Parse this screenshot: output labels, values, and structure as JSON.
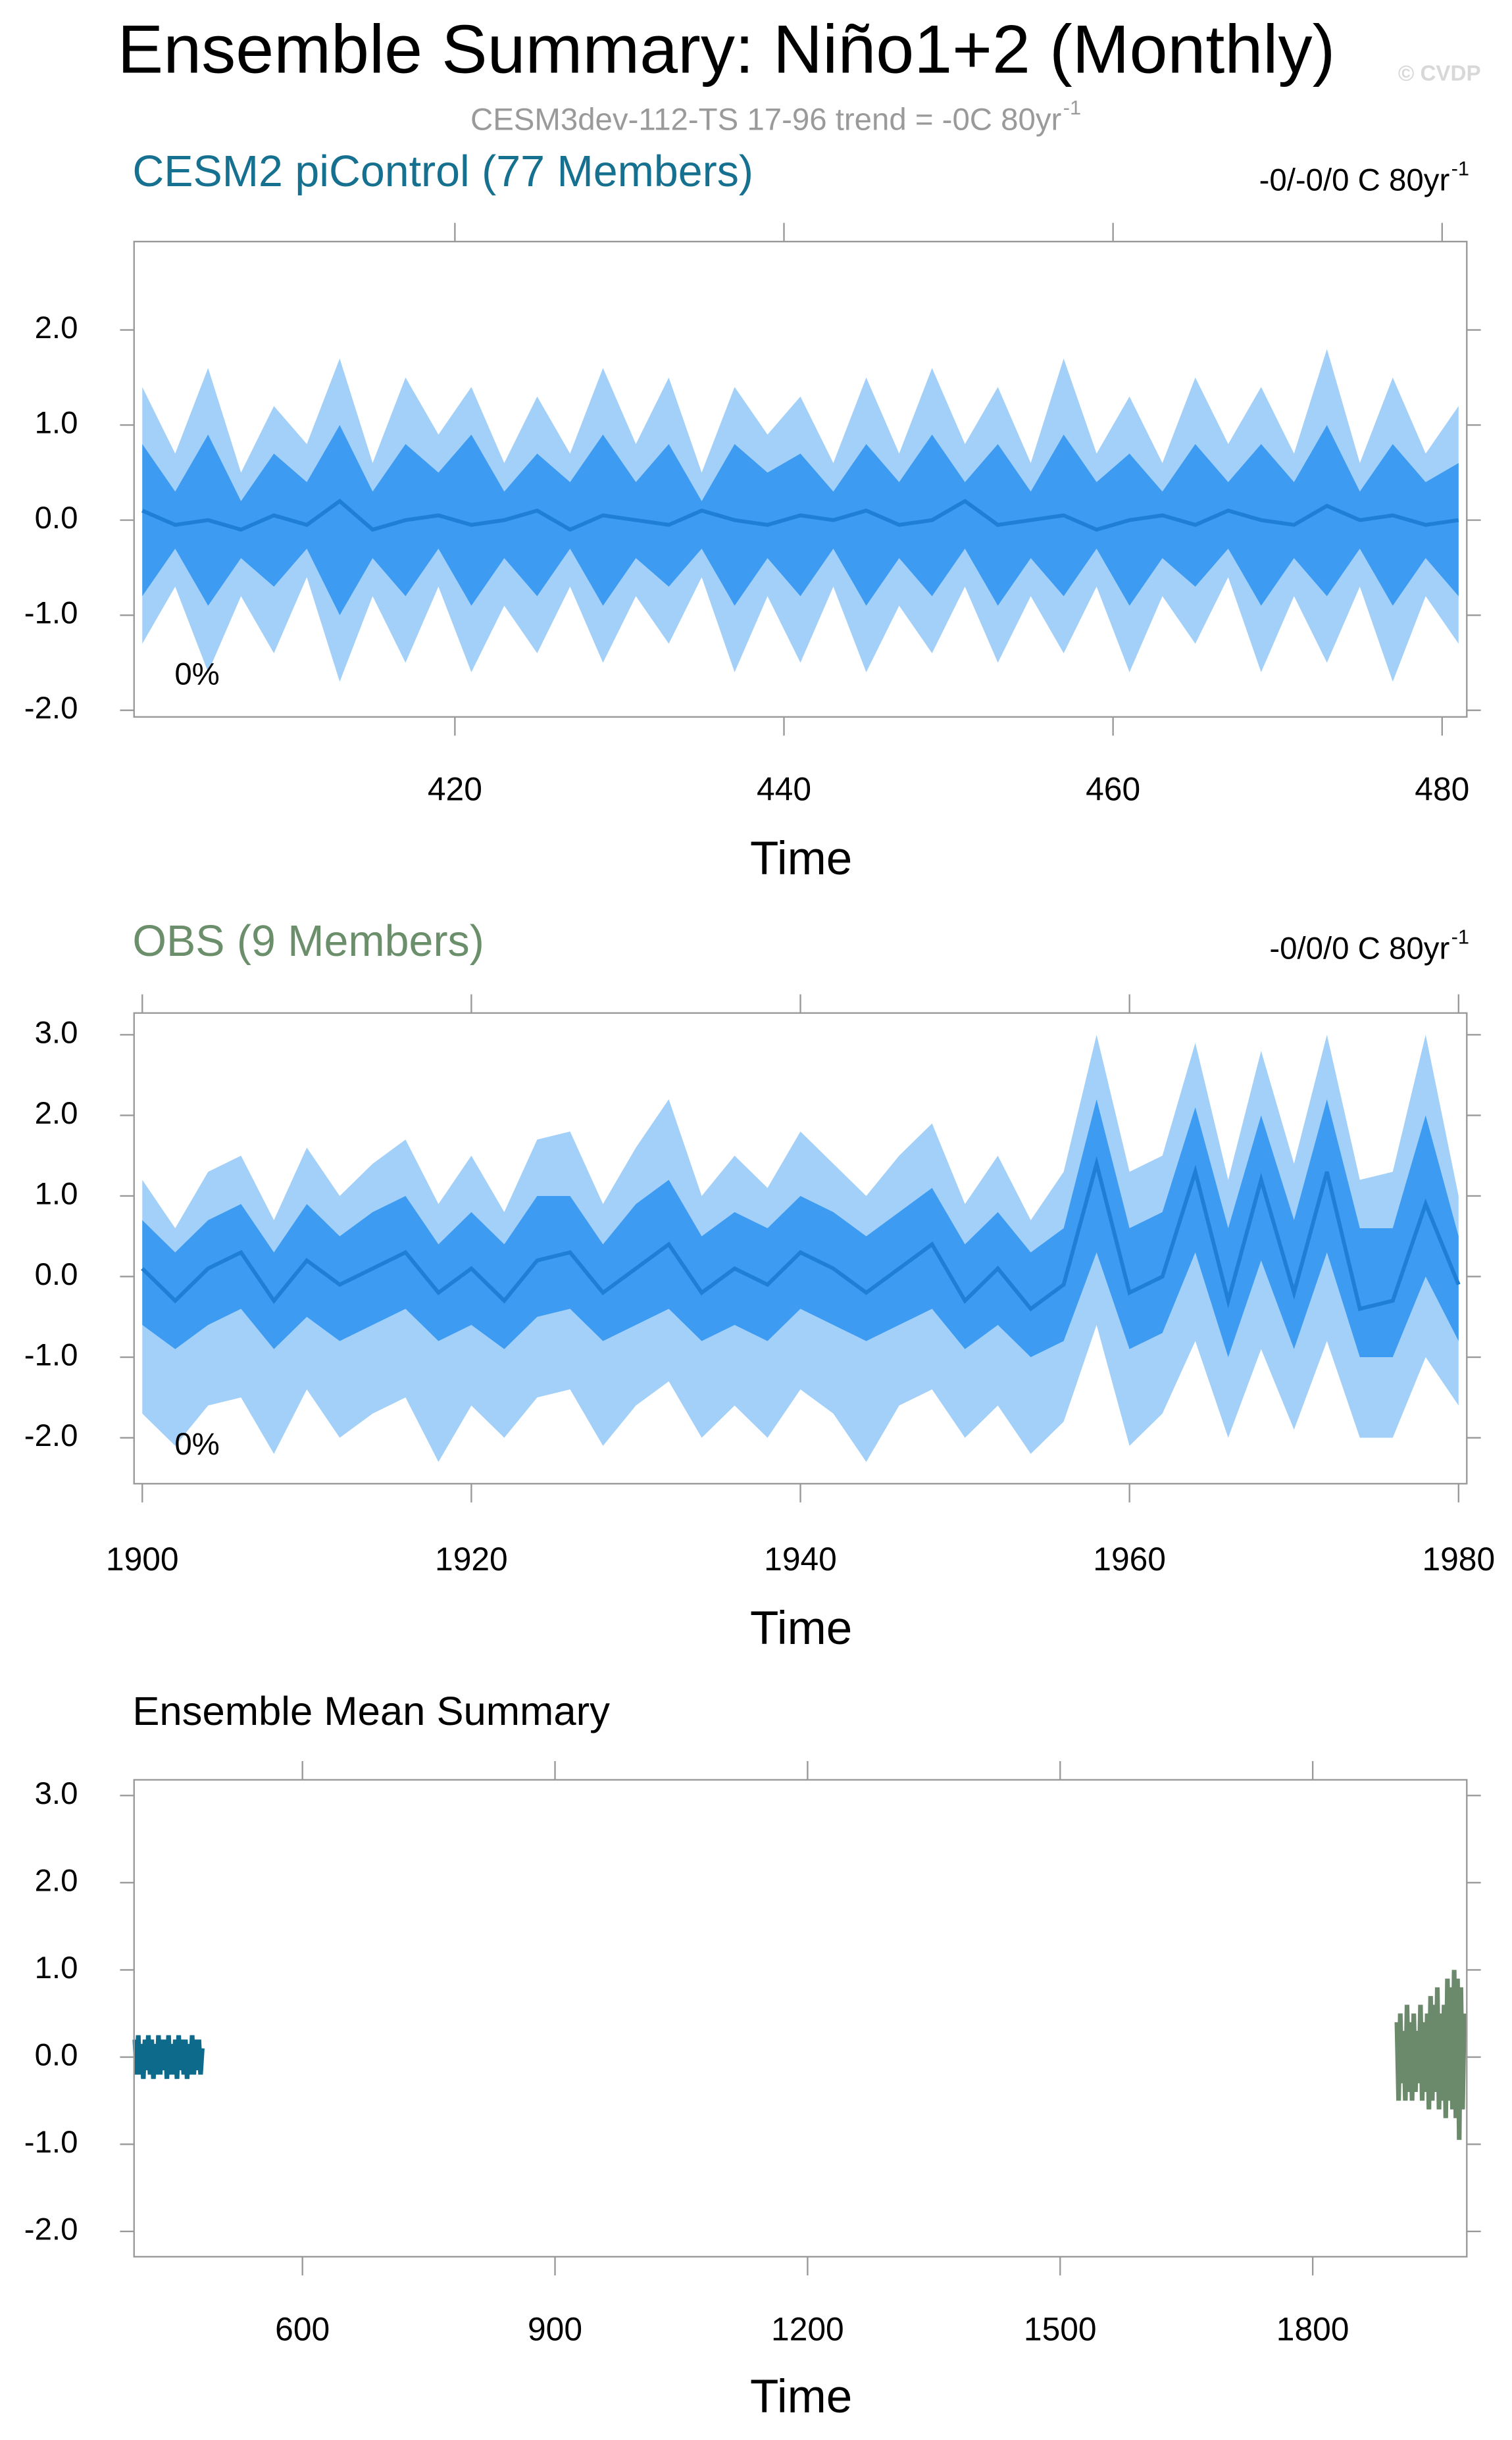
{
  "title": "Ensemble Summary: Niño1+2 (Monthly)",
  "watermark": "© CVDP",
  "subtitle": {
    "text": "CESM3dev-112-TS 17-96 trend = -0C 80yr",
    "superscript": "-1"
  },
  "chart_data": [
    {
      "type": "ensemble",
      "title": "CESM2 piControl (77 Members)",
      "title_color": "#16708f",
      "trend": {
        "text": "-0/-0/0 C 80yr",
        "superscript": "-1"
      },
      "annotation": "0%",
      "xlabel": "Time",
      "x": [
        401,
        403,
        405,
        407,
        409,
        411,
        413,
        415,
        417,
        419,
        421,
        423,
        425,
        427,
        429,
        431,
        433,
        435,
        437,
        439,
        441,
        443,
        445,
        447,
        449,
        451,
        453,
        455,
        457,
        459,
        461,
        463,
        465,
        467,
        469,
        471,
        473,
        475,
        477,
        479,
        481
      ],
      "bands": [
        {
          "color": "#a3d0f8",
          "high": [
            1.4,
            0.7,
            1.6,
            0.5,
            1.2,
            0.8,
            1.7,
            0.6,
            1.5,
            0.9,
            1.4,
            0.6,
            1.3,
            0.7,
            1.6,
            0.8,
            1.5,
            0.5,
            1.4,
            0.9,
            1.3,
            0.6,
            1.5,
            0.7,
            1.6,
            0.8,
            1.4,
            0.6,
            1.7,
            0.7,
            1.3,
            0.6,
            1.5,
            0.8,
            1.4,
            0.7,
            1.8,
            0.6,
            1.5,
            0.7,
            1.2
          ],
          "low": [
            -1.3,
            -0.7,
            -1.6,
            -0.8,
            -1.4,
            -0.6,
            -1.7,
            -0.8,
            -1.5,
            -0.7,
            -1.6,
            -0.9,
            -1.4,
            -0.7,
            -1.5,
            -0.8,
            -1.3,
            -0.6,
            -1.6,
            -0.8,
            -1.5,
            -0.7,
            -1.6,
            -0.9,
            -1.4,
            -0.7,
            -1.5,
            -0.8,
            -1.4,
            -0.7,
            -1.6,
            -0.8,
            -1.3,
            -0.6,
            -1.6,
            -0.8,
            -1.5,
            -0.7,
            -1.7,
            -0.8,
            -1.3
          ]
        },
        {
          "color": "#3d9cf2",
          "high": [
            0.8,
            0.3,
            0.9,
            0.2,
            0.7,
            0.4,
            1.0,
            0.3,
            0.8,
            0.5,
            0.9,
            0.3,
            0.7,
            0.4,
            0.9,
            0.4,
            0.8,
            0.2,
            0.8,
            0.5,
            0.7,
            0.3,
            0.8,
            0.4,
            0.9,
            0.4,
            0.8,
            0.3,
            0.9,
            0.4,
            0.7,
            0.3,
            0.8,
            0.4,
            0.8,
            0.4,
            1.0,
            0.3,
            0.8,
            0.4,
            0.6
          ],
          "low": [
            -0.8,
            -0.3,
            -0.9,
            -0.4,
            -0.7,
            -0.3,
            -1.0,
            -0.4,
            -0.8,
            -0.3,
            -0.9,
            -0.4,
            -0.8,
            -0.3,
            -0.9,
            -0.4,
            -0.7,
            -0.3,
            -0.9,
            -0.4,
            -0.8,
            -0.3,
            -0.9,
            -0.4,
            -0.8,
            -0.3,
            -0.9,
            -0.4,
            -0.8,
            -0.3,
            -0.9,
            -0.4,
            -0.7,
            -0.3,
            -0.9,
            -0.4,
            -0.8,
            -0.3,
            -0.9,
            -0.4,
            -0.8
          ]
        }
      ],
      "mean": {
        "color": "#1f7fd6",
        "values": [
          0.1,
          -0.05,
          0.0,
          -0.1,
          0.05,
          -0.05,
          0.2,
          -0.1,
          0.0,
          0.05,
          -0.05,
          0.0,
          0.1,
          -0.1,
          0.05,
          0.0,
          -0.05,
          0.1,
          0.0,
          -0.05,
          0.05,
          0.0,
          0.1,
          -0.05,
          0.0,
          0.2,
          -0.05,
          0.0,
          0.05,
          -0.1,
          0.0,
          0.05,
          -0.05,
          0.1,
          0.0,
          -0.05,
          0.15,
          0.0,
          0.05,
          -0.05,
          0.0
        ]
      },
      "xlim": [
        400.5,
        481.5
      ],
      "ylim": [
        -2.07,
        2.93
      ],
      "xticks": [
        420,
        440,
        460,
        480
      ],
      "yticks": [
        {
          "value": -2,
          "label": "-2.0"
        },
        {
          "value": -1,
          "label": "-1.0"
        },
        {
          "value": 0,
          "label": "0.0"
        },
        {
          "value": 1,
          "label": "1.0"
        },
        {
          "value": 2,
          "label": "2.0"
        }
      ]
    },
    {
      "type": "ensemble",
      "title": "OBS (9 Members)",
      "title_color": "#6b8e6b",
      "trend": {
        "text": "-0/0/0 C 80yr",
        "superscript": "-1"
      },
      "annotation": "0%",
      "xlabel": "Time",
      "x": [
        1900,
        1902,
        1904,
        1906,
        1908,
        1910,
        1912,
        1914,
        1916,
        1918,
        1920,
        1922,
        1924,
        1926,
        1928,
        1930,
        1932,
        1934,
        1936,
        1938,
        1940,
        1942,
        1944,
        1946,
        1948,
        1950,
        1952,
        1954,
        1956,
        1958,
        1960,
        1962,
        1964,
        1966,
        1968,
        1970,
        1972,
        1974,
        1976,
        1978,
        1980
      ],
      "bands": [
        {
          "color": "#a3d0f8",
          "high": [
            1.2,
            0.6,
            1.3,
            1.5,
            0.7,
            1.6,
            1.0,
            1.4,
            1.7,
            0.9,
            1.5,
            0.8,
            1.7,
            1.8,
            0.9,
            1.6,
            2.2,
            1.0,
            1.5,
            1.1,
            1.8,
            1.4,
            1.0,
            1.5,
            1.9,
            0.9,
            1.5,
            0.7,
            1.3,
            3.0,
            1.3,
            1.5,
            2.9,
            1.2,
            2.8,
            1.4,
            3.0,
            1.2,
            1.3,
            3.0,
            1.0
          ],
          "low": [
            -1.7,
            -2.1,
            -1.6,
            -1.5,
            -2.2,
            -1.4,
            -2.0,
            -1.7,
            -1.5,
            -2.3,
            -1.6,
            -2.0,
            -1.5,
            -1.4,
            -2.1,
            -1.6,
            -1.3,
            -2.0,
            -1.6,
            -2.0,
            -1.4,
            -1.7,
            -2.3,
            -1.6,
            -1.4,
            -2.0,
            -1.6,
            -2.2,
            -1.8,
            -0.6,
            -2.1,
            -1.7,
            -0.8,
            -2.0,
            -0.9,
            -1.9,
            -0.8,
            -2.0,
            -2.0,
            -1.0,
            -1.6
          ]
        },
        {
          "color": "#3d9cf2",
          "high": [
            0.7,
            0.3,
            0.7,
            0.9,
            0.3,
            0.9,
            0.5,
            0.8,
            1.0,
            0.4,
            0.8,
            0.4,
            1.0,
            1.0,
            0.4,
            0.9,
            1.2,
            0.5,
            0.8,
            0.6,
            1.0,
            0.8,
            0.5,
            0.8,
            1.1,
            0.4,
            0.8,
            0.3,
            0.6,
            2.2,
            0.6,
            0.8,
            2.1,
            0.6,
            2.0,
            0.7,
            2.2,
            0.6,
            0.6,
            2.0,
            0.5
          ],
          "low": [
            -0.6,
            -0.9,
            -0.6,
            -0.4,
            -0.9,
            -0.5,
            -0.8,
            -0.6,
            -0.4,
            -0.8,
            -0.6,
            -0.9,
            -0.5,
            -0.4,
            -0.8,
            -0.6,
            -0.4,
            -0.8,
            -0.6,
            -0.8,
            -0.4,
            -0.6,
            -0.8,
            -0.6,
            -0.4,
            -0.9,
            -0.6,
            -1.0,
            -0.8,
            0.3,
            -0.9,
            -0.7,
            0.3,
            -1.0,
            0.2,
            -0.9,
            0.3,
            -1.0,
            -1.0,
            0.0,
            -0.8
          ]
        }
      ],
      "mean": {
        "color": "#1f7fd6",
        "values": [
          0.1,
          -0.3,
          0.1,
          0.3,
          -0.3,
          0.2,
          -0.1,
          0.1,
          0.3,
          -0.2,
          0.1,
          -0.3,
          0.2,
          0.3,
          -0.2,
          0.1,
          0.4,
          -0.2,
          0.1,
          -0.1,
          0.3,
          0.1,
          -0.2,
          0.1,
          0.4,
          -0.3,
          0.1,
          -0.4,
          -0.1,
          1.4,
          -0.2,
          0.0,
          1.3,
          -0.3,
          1.2,
          -0.2,
          1.3,
          -0.4,
          -0.3,
          0.9,
          -0.1
        ]
      },
      "xlim": [
        1899.5,
        1980.5
      ],
      "ylim": [
        -2.57,
        3.27
      ],
      "xticks": [
        1900,
        1920,
        1940,
        1960,
        1980
      ],
      "yticks": [
        {
          "value": -2,
          "label": "-2.0"
        },
        {
          "value": -1,
          "label": "-1.0"
        },
        {
          "value": 0,
          "label": "0.0"
        },
        {
          "value": 1,
          "label": "1.0"
        },
        {
          "value": 2,
          "label": "2.0"
        },
        {
          "value": 3,
          "label": "3.0"
        }
      ]
    },
    {
      "type": "line",
      "title": "Ensemble Mean Summary",
      "title_color": "#000000",
      "xlabel": "Time",
      "series": [
        {
          "color": "#0d6a8a",
          "x": [
            401,
            403,
            405,
            407,
            409,
            411,
            413,
            415,
            417,
            419,
            421,
            423,
            425,
            427,
            429,
            431,
            433,
            435,
            437,
            439,
            441,
            443,
            445,
            447,
            449,
            451,
            453,
            455,
            457,
            459,
            461,
            463,
            465,
            467,
            469,
            471,
            473,
            475,
            477,
            479,
            481
          ],
          "values": [
            0.2,
            -0.2,
            0.25,
            -0.2,
            0.15,
            -0.25,
            0.2,
            -0.15,
            0.25,
            -0.2,
            0.2,
            -0.25,
            0.15,
            -0.2,
            0.25,
            -0.2,
            0.2,
            -0.15,
            0.2,
            -0.25,
            0.25,
            -0.2,
            0.15,
            -0.2,
            0.2,
            -0.25,
            0.25,
            -0.15,
            0.2,
            -0.2,
            0.2,
            -0.25,
            0.15,
            -0.2,
            0.25,
            -0.2,
            0.2,
            -0.15,
            0.2,
            -0.2,
            0.1
          ]
        },
        {
          "color": "#6b8a6b",
          "x": [
            1900,
            1902,
            1904,
            1906,
            1908,
            1910,
            1912,
            1914,
            1916,
            1918,
            1920,
            1922,
            1924,
            1926,
            1928,
            1930,
            1932,
            1934,
            1936,
            1938,
            1940,
            1942,
            1944,
            1946,
            1948,
            1950,
            1952,
            1954,
            1956,
            1958,
            1960,
            1962,
            1964,
            1966,
            1968,
            1970,
            1972,
            1974,
            1976,
            1978,
            1980
          ],
          "values": [
            0.4,
            -0.5,
            0.5,
            -0.3,
            0.3,
            -0.5,
            0.6,
            -0.4,
            0.4,
            -0.5,
            0.5,
            -0.4,
            0.3,
            -0.3,
            0.6,
            -0.5,
            0.4,
            -0.4,
            0.5,
            -0.6,
            0.7,
            -0.5,
            0.6,
            -0.4,
            0.8,
            -0.6,
            0.5,
            -0.5,
            0.6,
            -0.7,
            0.9,
            -0.5,
            0.8,
            -0.6,
            1.0,
            -0.7,
            0.9,
            -0.95,
            0.8,
            -0.6,
            0.5
          ]
        }
      ],
      "xlim": [
        400,
        1983
      ],
      "ylim": [
        -2.29,
        3.18
      ],
      "xticks": [
        600,
        900,
        1200,
        1500,
        1800
      ],
      "yticks": [
        {
          "value": -2,
          "label": "-2.0"
        },
        {
          "value": -1,
          "label": "-1.0"
        },
        {
          "value": 0,
          "label": "0.0"
        },
        {
          "value": 1,
          "label": "1.0"
        },
        {
          "value": 2,
          "label": "2.0"
        },
        {
          "value": 3,
          "label": "3.0"
        }
      ]
    }
  ]
}
